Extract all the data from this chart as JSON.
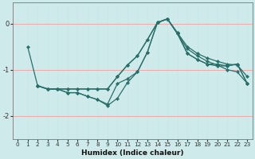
{
  "xlabel": "Humidex (Indice chaleur)",
  "bg_color": "#ceeaea",
  "line_color": "#2a6e6a",
  "marker_color": "#2a6e6a",
  "xlim": [
    -0.5,
    23.5
  ],
  "ylim": [
    -2.5,
    0.45
  ],
  "yticks": [
    0,
    -1,
    -2
  ],
  "xticks": [
    0,
    1,
    2,
    3,
    4,
    5,
    6,
    7,
    8,
    9,
    10,
    11,
    12,
    13,
    14,
    15,
    16,
    17,
    18,
    19,
    20,
    21,
    22,
    23
  ],
  "series": [
    {
      "x": [
        1,
        2,
        3,
        4,
        5,
        6,
        7,
        8,
        9,
        10,
        11,
        12,
        13,
        14,
        15,
        16,
        17,
        18,
        19,
        20,
        21,
        22,
        23
      ],
      "y": [
        -0.5,
        -1.35,
        -1.42,
        -1.42,
        -1.42,
        -1.42,
        -1.42,
        -1.42,
        -1.42,
        -1.15,
        -0.9,
        -0.7,
        -0.35,
        0.02,
        0.1,
        -0.2,
        -0.5,
        -0.65,
        -0.75,
        -0.82,
        -0.88,
        -0.9,
        -1.15
      ]
    },
    {
      "x": [
        2,
        3,
        4,
        5,
        6,
        7,
        8,
        9,
        10,
        11,
        12,
        13,
        14,
        15,
        16,
        17,
        18,
        19,
        20,
        21,
        22,
        23
      ],
      "y": [
        -1.35,
        -1.42,
        -1.42,
        -1.42,
        -1.42,
        -1.42,
        -1.42,
        -1.42,
        -1.15,
        -0.9,
        -0.7,
        -0.35,
        0.02,
        0.1,
        -0.2,
        -0.65,
        -0.78,
        -0.88,
        -0.92,
        -0.92,
        -0.88,
        -1.3
      ]
    },
    {
      "x": [
        2,
        3,
        4,
        5,
        6,
        7,
        8,
        9,
        10,
        11,
        12,
        13,
        14,
        15,
        16,
        17,
        18,
        19,
        20,
        21,
        22,
        23
      ],
      "y": [
        -1.35,
        -1.42,
        -1.42,
        -1.5,
        -1.5,
        -1.58,
        -1.65,
        -1.75,
        -1.3,
        -1.2,
        -1.05,
        -0.62,
        0.02,
        0.1,
        -0.22,
        -0.65,
        -0.78,
        -0.88,
        -0.88,
        -0.92,
        -0.88,
        -1.3
      ]
    },
    {
      "x": [
        2,
        3,
        4,
        5,
        6,
        7,
        8,
        9,
        10,
        11,
        12,
        13,
        14,
        15,
        16,
        17,
        18,
        19,
        20,
        21,
        22,
        23
      ],
      "y": [
        -1.35,
        -1.42,
        -1.42,
        -1.5,
        -1.5,
        -1.58,
        -1.65,
        -1.78,
        -1.62,
        -1.28,
        -1.05,
        -0.62,
        0.02,
        0.1,
        -0.22,
        -0.55,
        -0.7,
        -0.82,
        -0.9,
        -1.0,
        -1.05,
        -1.3
      ]
    }
  ]
}
